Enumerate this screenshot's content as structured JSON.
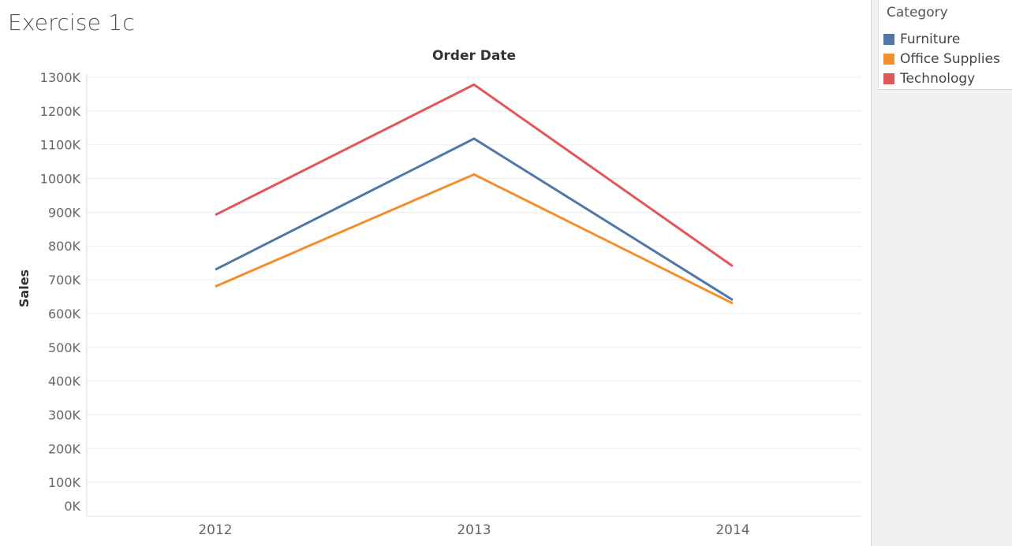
{
  "title": "Exercise 1c",
  "legend": {
    "title": "Category",
    "items": [
      {
        "label": "Furniture",
        "color": "#4e79a7"
      },
      {
        "label": "Office Supplies",
        "color": "#f28e2b"
      },
      {
        "label": "Technology",
        "color": "#e15759"
      }
    ]
  },
  "chart_data": {
    "type": "line",
    "title": "Order Date",
    "xlabel": "",
    "ylabel": "Sales",
    "categories": [
      "2012",
      "2013",
      "2014"
    ],
    "ylim": [
      0,
      1300000
    ],
    "yticks": [
      "0K",
      "100K",
      "200K",
      "300K",
      "400K",
      "500K",
      "600K",
      "700K",
      "800K",
      "900K",
      "1000K",
      "1100K",
      "1200K",
      "1300K"
    ],
    "grid": true,
    "legend_position": "right",
    "series": [
      {
        "name": "Furniture",
        "color": "#4e79a7",
        "values": [
          730000,
          1118000,
          640000
        ]
      },
      {
        "name": "Office Supplies",
        "color": "#f28e2b",
        "values": [
          680000,
          1012000,
          630000
        ]
      },
      {
        "name": "Technology",
        "color": "#e15759",
        "values": [
          892000,
          1278000,
          740000
        ]
      }
    ]
  }
}
